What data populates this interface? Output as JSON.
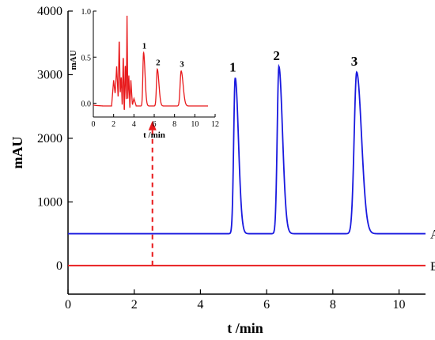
{
  "chart_data": [
    {
      "type": "line",
      "xlabel": "t /min",
      "ylabel": "mAU",
      "xlim": [
        0,
        10.8
      ],
      "ylim": [
        -450,
        4000
      ],
      "x_ticks": [
        0,
        2,
        4,
        6,
        8,
        10
      ],
      "y_ticks": [
        0,
        1000,
        2000,
        3000,
        4000
      ],
      "grid": false,
      "series": [
        {
          "name": "A",
          "color": "#1a1adf",
          "baseline": 500,
          "peaks": [
            {
              "label": "1",
              "t": 5.05,
              "height": 2450,
              "sigma": 0.045,
              "tail": 0.09
            },
            {
              "label": "2",
              "t": 6.37,
              "height": 2630,
              "sigma": 0.05,
              "tail": 0.1
            },
            {
              "label": "3",
              "t": 8.72,
              "height": 2540,
              "sigma": 0.075,
              "tail": 0.12
            }
          ]
        },
        {
          "name": "B",
          "color": "#e8191b",
          "baseline": 0,
          "peaks": []
        }
      ],
      "annotations": [
        {
          "type": "dashed-arrow",
          "color": "#e8191b",
          "x": 2.55,
          "from_y": 0,
          "to_y": 2250
        }
      ]
    },
    {
      "type": "line",
      "role": "inset",
      "xlabel": "t /min",
      "ylabel": "mAU",
      "xlim": [
        0,
        12
      ],
      "ylim": [
        -0.15,
        1.0
      ],
      "x_ticks": [
        0,
        2,
        4,
        6,
        8,
        10,
        12
      ],
      "y_ticks": [
        0.0,
        0.5,
        1.0
      ],
      "grid": false,
      "series": [
        {
          "color": "#e8191b",
          "baseline": -0.03,
          "points": [
            [
              0,
              -0.02
            ],
            [
              0.3,
              -0.025
            ],
            [
              1.0,
              -0.03
            ],
            [
              1.8,
              -0.03
            ],
            [
              2.0,
              0.25
            ],
            [
              2.15,
              0.1
            ],
            [
              2.3,
              0.4
            ],
            [
              2.45,
              0.05
            ],
            [
              2.55,
              0.73
            ],
            [
              2.65,
              0.1
            ],
            [
              2.75,
              0.3
            ],
            [
              2.85,
              -0.05
            ],
            [
              2.95,
              0.55
            ],
            [
              3.05,
              -0.13
            ],
            [
              3.15,
              0.45
            ],
            [
              3.25,
              0.0
            ],
            [
              3.32,
              0.95
            ],
            [
              3.4,
              0.05
            ],
            [
              3.5,
              0.3
            ],
            [
              3.6,
              -0.05
            ],
            [
              3.7,
              0.25
            ],
            [
              3.85,
              -0.02
            ],
            [
              4.0,
              0.05
            ],
            [
              4.2,
              -0.02
            ]
          ],
          "peaks": [
            {
              "label": "1",
              "t": 4.95,
              "height": 0.58,
              "sigma": 0.07,
              "tail": 0.12
            },
            {
              "label": "2",
              "t": 6.3,
              "height": 0.4,
              "sigma": 0.08,
              "tail": 0.14
            },
            {
              "label": "3",
              "t": 8.65,
              "height": 0.38,
              "sigma": 0.1,
              "tail": 0.16
            }
          ]
        }
      ]
    }
  ]
}
